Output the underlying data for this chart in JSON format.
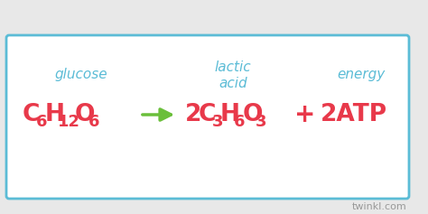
{
  "bg_color": "#e8e8e8",
  "border_color": "#5bbcd6",
  "box_facecolor": "#ffffff",
  "label_color": "#5bbcd6",
  "formula_color": "#e8394a",
  "arrow_color": "#6abf3a",
  "watermark_color": "#999999",
  "glucose_label": "glucose",
  "lactic_label1": "lactic",
  "lactic_label2": "acid",
  "energy_label": "energy",
  "watermark": "twinkl.com",
  "label_fontsize": 11,
  "formula_fontsize": 19,
  "sub_fontsize": 13,
  "watermark_fontsize": 8,
  "plus_fontsize": 20
}
